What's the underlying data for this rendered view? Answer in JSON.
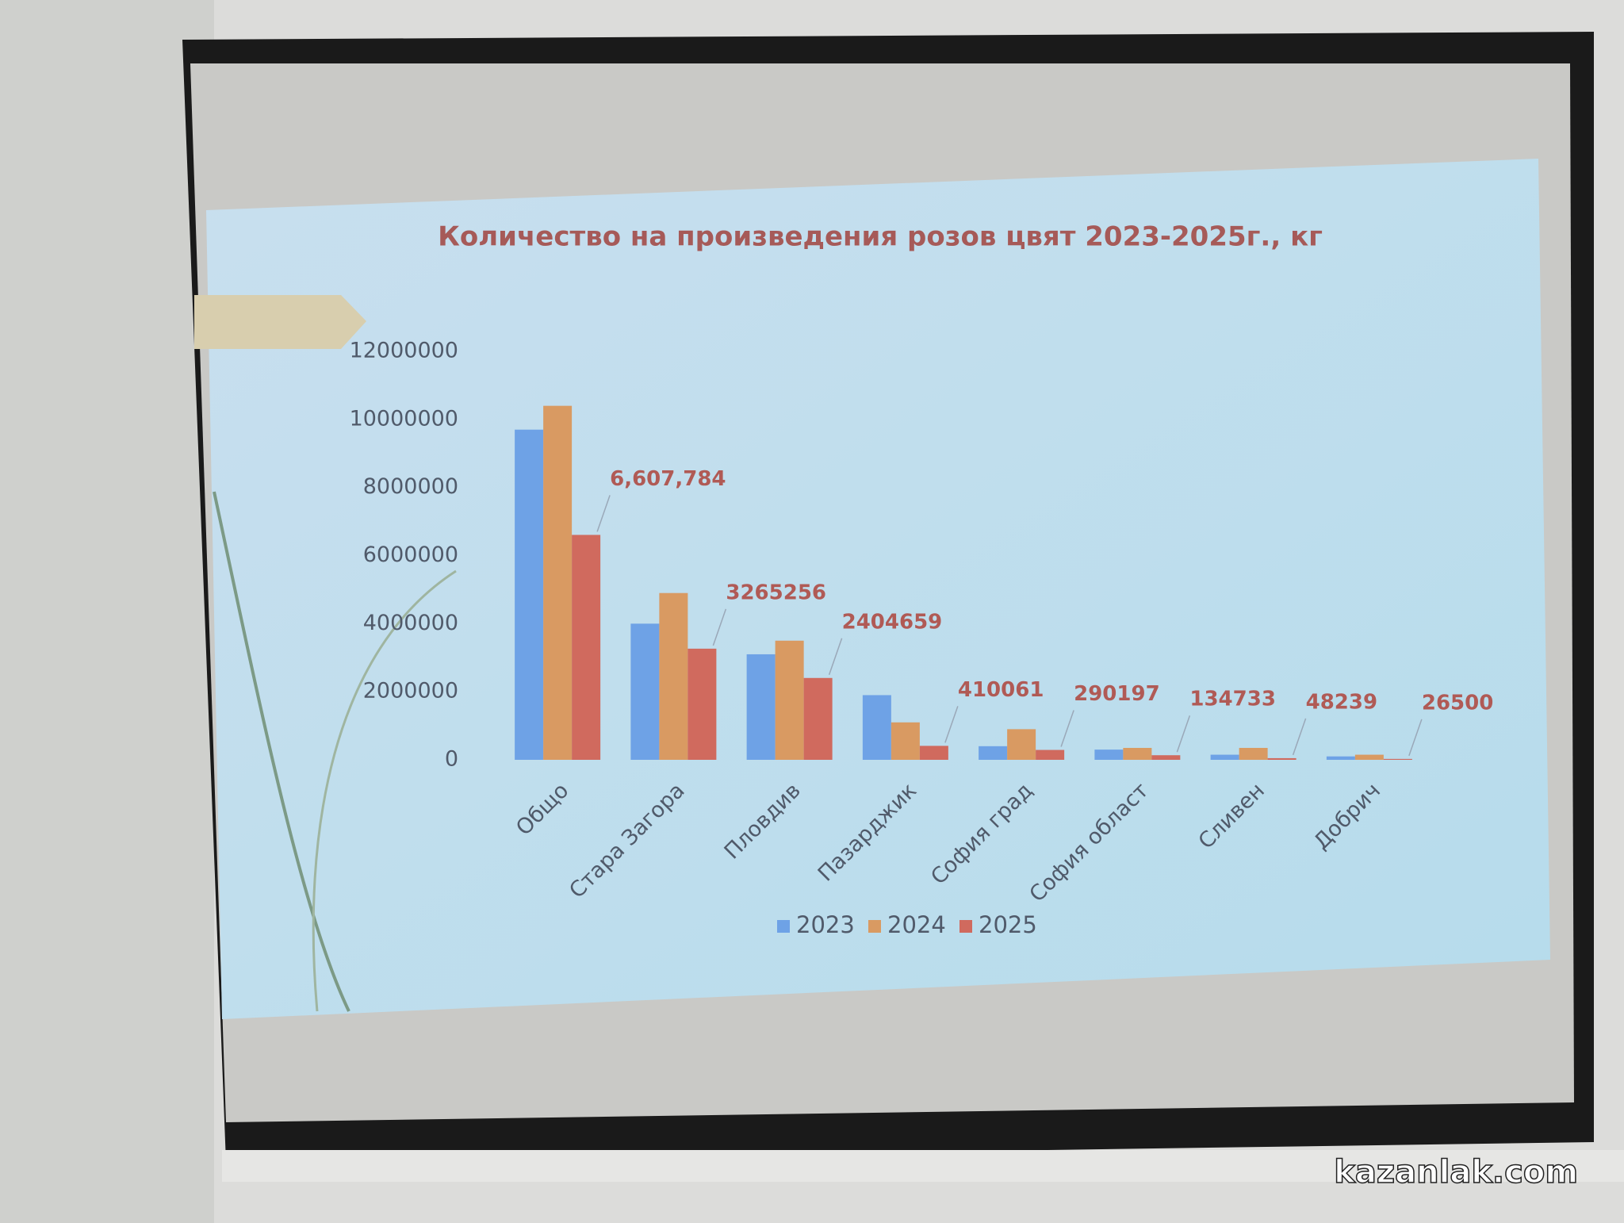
{
  "chart_data": {
    "type": "bar",
    "title": "Количество на произведения розов цвят 2023-2025г., кг",
    "categories": [
      "Общо",
      "Стара Загора",
      "Пловдив",
      "Пазарджик",
      "София град",
      "София област",
      "Сливен",
      "Добрич"
    ],
    "series": [
      {
        "name": "2023",
        "color": "#6ea2e6",
        "values": [
          9700000,
          4000000,
          3100000,
          1900000,
          400000,
          300000,
          150000,
          100000
        ]
      },
      {
        "name": "2024",
        "color": "#d99a62",
        "values": [
          10400000,
          4900000,
          3500000,
          1100000,
          900000,
          350000,
          350000,
          150000
        ]
      },
      {
        "name": "2025",
        "color": "#d06a5e",
        "values": [
          6607784,
          3265256,
          2404659,
          410061,
          290197,
          134733,
          48239,
          26500
        ],
        "value_labels": [
          "6,607,784",
          "3265256",
          "2404659",
          "410061",
          "290197",
          "134733",
          "48239",
          "26500"
        ]
      }
    ],
    "ylim": [
      0,
      12000000
    ],
    "yticks": [
      0,
      2000000,
      4000000,
      6000000,
      8000000,
      10000000,
      12000000
    ],
    "grid": false,
    "legend": "bottom"
  },
  "watermark": "kazanlak.com"
}
